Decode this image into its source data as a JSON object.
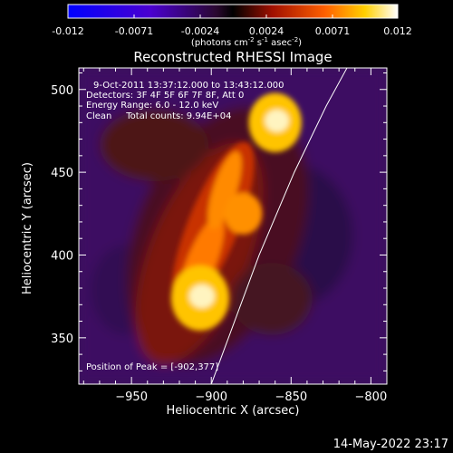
{
  "colorbar": {
    "ticks": [
      "-0.012",
      "-0.0071",
      "-0.0024",
      "0.0024",
      "0.0071",
      "0.012"
    ],
    "unit_parts": [
      "(photons cm",
      "-2",
      " s",
      "-1",
      " asec",
      "-2",
      ")"
    ]
  },
  "timestamp": "14-May-2022 23:17",
  "chart_data": {
    "type": "heatmap",
    "title": "Reconstructed RHESSI Image",
    "xlabel": "Heliocentric X (arcsec)",
    "ylabel": "Heliocentric Y (arcsec)",
    "xlim": [
      -983,
      -790
    ],
    "ylim": [
      322,
      513
    ],
    "x_ticks": [
      "−950",
      "−900",
      "−850",
      "−800"
    ],
    "x_tick_values": [
      -950,
      -900,
      -850,
      -800
    ],
    "y_ticks": [
      "350",
      "400",
      "450",
      "500"
    ],
    "y_tick_values": [
      350,
      400,
      450,
      500
    ],
    "colorbar_range": [
      -0.012,
      0.012
    ],
    "colormap": "hot/blue",
    "sources": [
      {
        "x": -907,
        "y": 374,
        "peak": 0.012
      },
      {
        "x": -860,
        "y": 480,
        "peak": 0.0105
      },
      {
        "x": -880,
        "y": 425,
        "peak": 0.006
      }
    ],
    "limb_curve": [
      {
        "x": -900,
        "y": 322
      },
      {
        "x": -870,
        "y": 400
      },
      {
        "x": -848,
        "y": 450
      },
      {
        "x": -828,
        "y": 490
      },
      {
        "x": -815,
        "y": 513
      }
    ],
    "annotations": [
      "9-Oct-2011 13:37:12.000 to 13:43:12.000",
      "Detectors: 3F 4F 5F 6F 7F 8F, Att 0",
      "Energy Range: 6.0 - 12.0 keV",
      "Clean     Total counts: 9.94E+04",
      "Position of Peak = [-902,377]"
    ]
  }
}
